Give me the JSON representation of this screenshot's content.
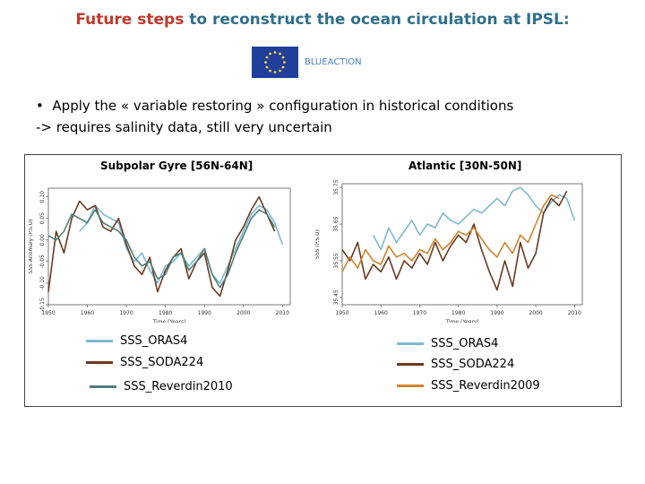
{
  "slide": {
    "title_highlight": "Future steps",
    "title_rest": "to reconstruct the ocean circulation at IPSL:",
    "logo_label": "BLUEACTION",
    "bullet_marker": "•",
    "bullet_line1": "Apply the « variable restoring » configuration in historical conditions",
    "bullet_line2": "-> requires salinity data, still very uncertain"
  },
  "colors": {
    "ORAS4": "#7cb9d1",
    "SODA224": "#6b3a1f",
    "Reverdin2010": "#4f7f7a",
    "Reverdin2009": "#d2832a"
  },
  "chart_data": [
    {
      "type": "line",
      "title": "Subpolar Gyre [56N-64N]",
      "xlabel": "Time (Years)",
      "ylabel": "SSS Anomaly (P.S.U)",
      "xlim": [
        1950,
        2012
      ],
      "ylim": [
        -0.15,
        0.12
      ],
      "xticks": [
        "1950",
        "1960",
        "1970",
        "1980",
        "1990",
        "2000",
        "2010"
      ],
      "yticks": [
        "0.10",
        "0.05",
        "0.00",
        "-0.05",
        "-0.10",
        "-0.15"
      ],
      "series": [
        {
          "name": "SSS_ORAS4",
          "color_key": "ORAS4",
          "x": [
            1958,
            1960,
            1962,
            1964,
            1966,
            1968,
            1970,
            1972,
            1974,
            1976,
            1978,
            1980,
            1982,
            1984,
            1986,
            1988,
            1990,
            1992,
            1994,
            1996,
            1998,
            2000,
            2002,
            2004,
            2006,
            2008,
            2010
          ],
          "y": [
            0.02,
            0.04,
            0.08,
            0.06,
            0.05,
            0.04,
            -0.02,
            -0.05,
            -0.03,
            -0.07,
            -0.1,
            -0.06,
            -0.05,
            -0.03,
            -0.06,
            -0.04,
            -0.02,
            -0.08,
            -0.1,
            -0.06,
            -0.02,
            0.02,
            0.06,
            0.08,
            0.07,
            0.04,
            -0.01
          ]
        },
        {
          "name": "SSS_SODA224",
          "color_key": "SODA224",
          "x": [
            1950,
            1952,
            1954,
            1956,
            1958,
            1960,
            1962,
            1964,
            1966,
            1968,
            1970,
            1972,
            1974,
            1976,
            1978,
            1980,
            1982,
            1984,
            1986,
            1988,
            1990,
            1992,
            1994,
            1996,
            1998,
            2000,
            2002,
            2004,
            2006,
            2008
          ],
          "y": [
            -0.12,
            0.02,
            -0.03,
            0.05,
            0.09,
            0.07,
            0.08,
            0.03,
            0.02,
            0.05,
            -0.01,
            -0.06,
            -0.08,
            -0.04,
            -0.12,
            -0.07,
            -0.04,
            -0.02,
            -0.09,
            -0.05,
            -0.03,
            -0.11,
            -0.13,
            -0.07,
            0.0,
            0.03,
            0.07,
            0.1,
            0.06,
            0.02
          ]
        },
        {
          "name": "SSS_Reverdin2010",
          "color_key": "Reverdin2010",
          "x": [
            1950,
            1952,
            1954,
            1956,
            1958,
            1960,
            1962,
            1964,
            1966,
            1968,
            1970,
            1972,
            1974,
            1976,
            1978,
            1980,
            1982,
            1984,
            1986,
            1988,
            1990,
            1992,
            1994,
            1996,
            1998,
            2000,
            2002,
            2004,
            2006,
            2008
          ],
          "y": [
            0.01,
            0.0,
            0.02,
            0.06,
            0.05,
            0.04,
            0.07,
            0.04,
            0.03,
            0.02,
            0.0,
            -0.04,
            -0.06,
            -0.05,
            -0.09,
            -0.08,
            -0.04,
            -0.03,
            -0.07,
            -0.05,
            -0.02,
            -0.08,
            -0.11,
            -0.08,
            -0.03,
            0.01,
            0.05,
            0.07,
            0.06,
            0.03
          ]
        }
      ]
    },
    {
      "type": "line",
      "title": "Atlantic [30N-50N]",
      "xlabel": "Time (Years)",
      "ylabel": "SSS (P.S.U)",
      "xlim": [
        1950,
        2012
      ],
      "ylim": [
        35.43,
        35.76
      ],
      "xticks": [
        "1950",
        "1960",
        "1970",
        "1980",
        "1990",
        "2000",
        "2010"
      ],
      "yticks": [
        "35.75",
        "35.65",
        "35.55",
        "35.45"
      ],
      "series": [
        {
          "name": "SSS_ORAS4",
          "color_key": "ORAS4",
          "x": [
            1958,
            1960,
            1962,
            1964,
            1966,
            1968,
            1970,
            1972,
            1974,
            1976,
            1978,
            1980,
            1982,
            1984,
            1986,
            1988,
            1990,
            1992,
            1994,
            1996,
            1998,
            2000,
            2002,
            2004,
            2006,
            2008,
            2010
          ],
          "y": [
            35.62,
            35.58,
            35.64,
            35.6,
            35.63,
            35.66,
            35.62,
            35.65,
            35.64,
            35.68,
            35.66,
            35.65,
            35.67,
            35.69,
            35.68,
            35.7,
            35.72,
            35.7,
            35.74,
            35.75,
            35.73,
            35.7,
            35.68,
            35.71,
            35.73,
            35.72,
            35.66
          ]
        },
        {
          "name": "SSS_SODA224",
          "color_key": "SODA224",
          "x": [
            1950,
            1952,
            1954,
            1956,
            1958,
            1960,
            1962,
            1964,
            1966,
            1968,
            1970,
            1972,
            1974,
            1976,
            1978,
            1980,
            1982,
            1984,
            1986,
            1988,
            1990,
            1992,
            1994,
            1996,
            1998,
            2000,
            2002,
            2004,
            2006,
            2008
          ],
          "y": [
            35.58,
            35.55,
            35.6,
            35.5,
            35.54,
            35.52,
            35.56,
            35.5,
            35.55,
            35.53,
            35.57,
            35.54,
            35.6,
            35.55,
            35.59,
            35.62,
            35.6,
            35.65,
            35.58,
            35.52,
            35.47,
            35.55,
            35.48,
            35.6,
            35.53,
            35.57,
            35.68,
            35.72,
            35.7,
            35.74
          ]
        },
        {
          "name": "SSS_Reverdin2009",
          "color_key": "Reverdin2009",
          "x": [
            1950,
            1952,
            1954,
            1956,
            1958,
            1960,
            1962,
            1964,
            1966,
            1968,
            1970,
            1972,
            1974,
            1976,
            1978,
            1980,
            1982,
            1984,
            1986,
            1988,
            1990,
            1992,
            1994,
            1996,
            1998,
            2000,
            2002,
            2004,
            2006
          ],
          "y": [
            35.52,
            35.56,
            35.53,
            35.58,
            35.55,
            35.54,
            35.59,
            35.56,
            35.57,
            35.55,
            35.58,
            35.57,
            35.61,
            35.58,
            35.6,
            35.63,
            35.62,
            35.64,
            35.61,
            35.58,
            35.56,
            35.6,
            35.57,
            35.62,
            35.6,
            35.65,
            35.7,
            35.73,
            35.72
          ]
        }
      ]
    }
  ],
  "legends": {
    "left": [
      "SSS_ORAS4",
      "SSS_SODA224",
      "SSS_Reverdin2010"
    ],
    "right": [
      "SSS_ORAS4",
      "SSS_SODA224",
      "SSS_Reverdin2009"
    ]
  }
}
